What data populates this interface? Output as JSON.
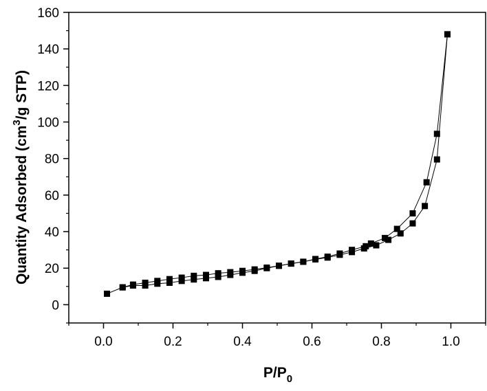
{
  "chart_data": {
    "type": "scatter",
    "title": "",
    "xlabel_main": "P/P",
    "xlabel_sub": "0",
    "ylabel_pre": "Quantity Adsorbed (cm",
    "ylabel_sup": "3",
    "ylabel_post": "/g STP)",
    "xlim": [
      -0.1,
      1.1
    ],
    "ylim": [
      -10,
      160
    ],
    "xticks": [
      0.0,
      0.2,
      0.4,
      0.6,
      0.8,
      1.0
    ],
    "xtick_labels": [
      "0.0",
      "0.2",
      "0.4",
      "0.6",
      "0.8",
      "1.0"
    ],
    "yticks": [
      0,
      20,
      40,
      60,
      80,
      100,
      120,
      140,
      160
    ],
    "ytick_labels": [
      "0",
      "20",
      "40",
      "60",
      "80",
      "100",
      "120",
      "140",
      "160"
    ],
    "grid": false,
    "marker": "square",
    "color": "#000000",
    "series": [
      {
        "x": [
          0.01,
          0.055,
          0.085,
          0.12,
          0.155,
          0.19,
          0.225,
          0.26,
          0.295,
          0.33,
          0.365,
          0.4,
          0.435,
          0.47,
          0.505,
          0.54,
          0.575,
          0.61,
          0.645,
          0.68,
          0.715,
          0.75,
          0.785,
          0.82,
          0.855,
          0.89,
          0.925,
          0.96,
          0.99
        ],
        "y": [
          6,
          9.5,
          10.5,
          10.5,
          11.5,
          12,
          13,
          13.8,
          14.5,
          15.2,
          16.3,
          17.5,
          18.5,
          20,
          21.3,
          22.5,
          23.5,
          24.8,
          25.8,
          27.3,
          28.8,
          30.8,
          32.5,
          35.5,
          39,
          44.5,
          54,
          79.5,
          148
        ]
      },
      {
        "x": [
          0.99,
          0.96,
          0.93,
          0.89,
          0.845,
          0.81,
          0.77,
          0.755,
          0.715,
          0.68,
          0.645,
          0.61,
          0.575,
          0.54,
          0.505,
          0.47,
          0.435,
          0.4,
          0.365,
          0.33,
          0.295,
          0.26,
          0.225,
          0.19,
          0.155,
          0.12,
          0.085,
          0.055
        ],
        "y": [
          148,
          93.5,
          67,
          50,
          41.5,
          36.5,
          33.5,
          32,
          30,
          28,
          26.3,
          25,
          23.5,
          22.5,
          21.3,
          20.3,
          19.3,
          18.5,
          17.8,
          17.2,
          16.3,
          15.8,
          14.8,
          14,
          13,
          12,
          11,
          9.5
        ]
      }
    ]
  }
}
